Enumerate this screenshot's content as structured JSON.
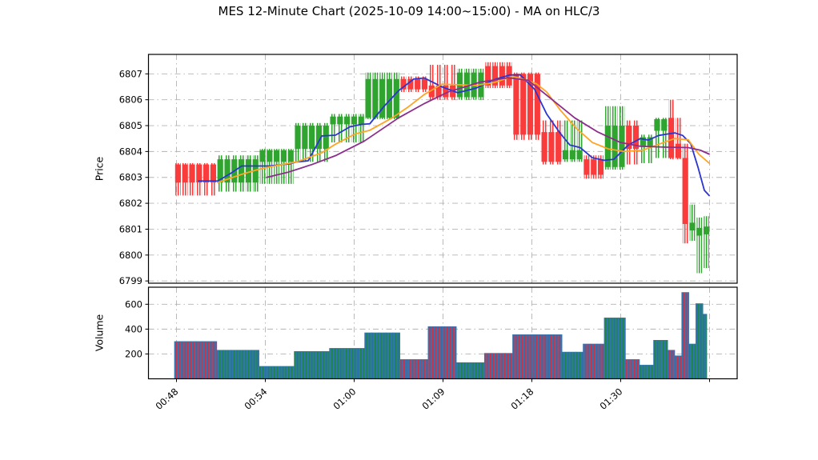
{
  "title": "MES 12-Minute Chart (2025-10-09 14:00~15:00) - MA on HLC/3",
  "price_panel": {
    "ylabel": "Price"
  },
  "volume_panel": {
    "ylabel": "Volume"
  },
  "colors": {
    "background": "#ffffff",
    "candle_up": "#2fa52f",
    "candle_down": "#fa3b3b",
    "volume_base": "#3076b3",
    "volume_up_stripe": "#1e8449",
    "volume_down_stripe": "#cf3045",
    "ma_fast": "#2b35cf",
    "ma_mid": "#ffa424",
    "ma_slow": "#8c2d8c",
    "grid": "#b3b3b3",
    "spine": "#000000"
  },
  "chart_data": {
    "type": "candlestick_with_volume",
    "title": "MES 12-Minute Chart (2025-10-09 14:00~15:00) - MA on HLC/3",
    "x_axis": {
      "tick_labels": [
        "00:48",
        "00:54",
        "01:00",
        "01:09",
        "01:18",
        "01:30",
        ""
      ]
    },
    "price_axis": {
      "label": "Price",
      "ticks": [
        6807,
        6806,
        6805,
        6804,
        6803,
        6802,
        6801,
        6800,
        6799
      ],
      "range": [
        6798.85,
        6807.75
      ]
    },
    "volume_axis": {
      "label": "Volume",
      "ticks": [
        600,
        400,
        200
      ],
      "range": [
        0,
        755
      ]
    },
    "ohlcv_blocks": [
      {
        "bars": 6,
        "dir": "down",
        "open": 6803.5,
        "high": 6803.55,
        "low": 6802.3,
        "close": 6802.8,
        "volume": 300
      },
      {
        "bars": 6,
        "dir": "up",
        "open": 6802.8,
        "high": 6803.85,
        "low": 6802.45,
        "close": 6803.7,
        "volume": 230
      },
      {
        "bars": 5,
        "dir": "up",
        "open": 6803.6,
        "high": 6804.1,
        "low": 6802.75,
        "close": 6804.05,
        "volume": 100
      },
      {
        "bars": 5,
        "dir": "up",
        "open": 6804.1,
        "high": 6805.1,
        "low": 6803.6,
        "close": 6805.0,
        "volume": 220
      },
      {
        "bars": 5,
        "dir": "up",
        "open": 6805.05,
        "high": 6805.45,
        "low": 6804.35,
        "close": 6805.35,
        "volume": 245
      },
      {
        "bars": 5,
        "dir": "up",
        "open": 6805.3,
        "high": 6807.05,
        "low": 6805.25,
        "close": 6806.8,
        "volume": 370
      },
      {
        "bars": 4,
        "dir": "down",
        "open": 6806.8,
        "high": 6806.9,
        "low": 6806.3,
        "close": 6806.4,
        "volume": 155
      },
      {
        "bars": 4,
        "dir": "down",
        "open": 6806.55,
        "high": 6807.35,
        "low": 6806.0,
        "close": 6806.1,
        "volume": 420
      },
      {
        "bars": 4,
        "dir": "up",
        "open": 6806.1,
        "high": 6807.2,
        "low": 6806.0,
        "close": 6807.05,
        "volume": 130
      },
      {
        "bars": 4,
        "dir": "down",
        "open": 6807.3,
        "high": 6807.45,
        "low": 6806.45,
        "close": 6806.55,
        "volume": 205
      },
      {
        "bars": 4,
        "dir": "down",
        "open": 6807.0,
        "high": 6807.05,
        "low": 6804.45,
        "close": 6804.65,
        "volume": 355
      },
      {
        "bars": 3,
        "dir": "down",
        "open": 6804.75,
        "high": 6805.2,
        "low": 6803.5,
        "close": 6803.6,
        "volume": 355
      },
      {
        "bars": 3,
        "dir": "up",
        "open": 6803.7,
        "high": 6805.2,
        "low": 6803.6,
        "close": 6804.05,
        "volume": 215
      },
      {
        "bars": 3,
        "dir": "down",
        "open": 6803.7,
        "high": 6803.85,
        "low": 6802.95,
        "close": 6803.1,
        "volume": 280
      },
      {
        "bars": 3,
        "dir": "up",
        "open": 6803.4,
        "high": 6805.75,
        "low": 6803.3,
        "close": 6805.0,
        "volume": 490
      },
      {
        "bars": 2,
        "dir": "down",
        "open": 6805.0,
        "high": 6805.2,
        "low": 6803.5,
        "close": 6804.1,
        "volume": 155
      },
      {
        "bars": 2,
        "dir": "up",
        "open": 6804.2,
        "high": 6804.65,
        "low": 6803.55,
        "close": 6804.55,
        "volume": 110
      },
      {
        "bars": 2,
        "dir": "up",
        "open": 6804.8,
        "high": 6805.3,
        "low": 6803.75,
        "close": 6805.25,
        "volume": 310
      },
      {
        "bars": 1,
        "dir": "down",
        "open": 6805.3,
        "high": 6806.0,
        "low": 6803.7,
        "close": 6803.75,
        "volume": 230
      },
      {
        "bars": 1,
        "dir": "down",
        "open": 6804.3,
        "high": 6805.3,
        "low": 6803.7,
        "close": 6803.75,
        "volume": 185
      },
      {
        "bars": 1,
        "dir": "down",
        "open": 6803.75,
        "high": 6804.3,
        "low": 6800.45,
        "close": 6801.2,
        "volume": 695
      },
      {
        "bars": 1,
        "dir": "up",
        "open": 6800.95,
        "high": 6801.95,
        "low": 6800.55,
        "close": 6801.25,
        "volume": 280
      },
      {
        "bars": 1,
        "dir": "up",
        "open": 6800.75,
        "high": 6801.45,
        "low": 6799.3,
        "close": 6801.05,
        "volume": 605
      },
      {
        "bars": 1,
        "dir": "up",
        "open": 6800.8,
        "high": 6801.5,
        "low": 6799.5,
        "close": 6801.1,
        "volume": 520,
        "clipped": true
      }
    ],
    "moving_averages": [
      {
        "name": "ma-fast",
        "color_key": "ma_fast",
        "points": [
          [
            248,
            6802.86
          ],
          [
            272,
            6802.86
          ],
          [
            288,
            6803.15
          ],
          [
            302,
            6803.44
          ],
          [
            336,
            6803.44
          ],
          [
            362,
            6803.52
          ],
          [
            371,
            6803.6
          ],
          [
            385,
            6803.64
          ],
          [
            402,
            6804.6
          ],
          [
            419,
            6804.63
          ],
          [
            437,
            6804.95
          ],
          [
            452,
            6805.05
          ],
          [
            462,
            6805.07
          ],
          [
            480,
            6805.75
          ],
          [
            498,
            6806.35
          ],
          [
            517,
            6806.8
          ],
          [
            530,
            6806.84
          ],
          [
            552,
            6806.5
          ],
          [
            572,
            6806.27
          ],
          [
            595,
            6806.45
          ],
          [
            618,
            6806.78
          ],
          [
            637,
            6806.96
          ],
          [
            650,
            6806.96
          ],
          [
            668,
            6806.4
          ],
          [
            683,
            6805.45
          ],
          [
            700,
            6804.7
          ],
          [
            712,
            6804.25
          ],
          [
            725,
            6804.15
          ],
          [
            740,
            6803.76
          ],
          [
            755,
            6803.66
          ],
          [
            767,
            6803.7
          ],
          [
            785,
            6804.25
          ],
          [
            800,
            6804.5
          ],
          [
            810,
            6804.44
          ],
          [
            823,
            6804.62
          ],
          [
            835,
            6804.68
          ],
          [
            843,
            6804.72
          ],
          [
            853,
            6804.62
          ],
          [
            863,
            6804.3
          ],
          [
            872,
            6803.4
          ],
          [
            880,
            6802.5
          ],
          [
            886,
            6802.3
          ]
        ]
      },
      {
        "name": "ma-mid",
        "color_key": "ma_mid",
        "points": [
          [
            272,
            6802.8
          ],
          [
            302,
            6803.12
          ],
          [
            322,
            6803.3
          ],
          [
            336,
            6803.4
          ],
          [
            371,
            6803.6
          ],
          [
            402,
            6803.95
          ],
          [
            419,
            6804.28
          ],
          [
            444,
            6804.68
          ],
          [
            462,
            6804.82
          ],
          [
            490,
            6805.3
          ],
          [
            510,
            6805.72
          ],
          [
            530,
            6806.2
          ],
          [
            552,
            6806.6
          ],
          [
            572,
            6806.58
          ],
          [
            595,
            6806.55
          ],
          [
            618,
            6806.67
          ],
          [
            640,
            6806.9
          ],
          [
            653,
            6806.8
          ],
          [
            670,
            6806.62
          ],
          [
            683,
            6806.3
          ],
          [
            700,
            6805.6
          ],
          [
            720,
            6804.9
          ],
          [
            740,
            6804.35
          ],
          [
            760,
            6804.1
          ],
          [
            780,
            6804.0
          ],
          [
            803,
            6804.05
          ],
          [
            823,
            6804.28
          ],
          [
            843,
            6804.5
          ],
          [
            860,
            6804.45
          ],
          [
            873,
            6803.9
          ],
          [
            886,
            6803.55
          ]
        ]
      },
      {
        "name": "ma-slow",
        "color_key": "ma_slow",
        "points": [
          [
            333,
            6803.0
          ],
          [
            360,
            6803.2
          ],
          [
            390,
            6803.5
          ],
          [
            420,
            6803.85
          ],
          [
            455,
            6804.4
          ],
          [
            498,
            6805.3
          ],
          [
            530,
            6805.85
          ],
          [
            560,
            6806.3
          ],
          [
            600,
            6806.68
          ],
          [
            635,
            6806.85
          ],
          [
            660,
            6806.75
          ],
          [
            690,
            6806.0
          ],
          [
            718,
            6805.3
          ],
          [
            747,
            6804.75
          ],
          [
            775,
            6804.35
          ],
          [
            800,
            6804.2
          ],
          [
            830,
            6804.17
          ],
          [
            860,
            6804.15
          ],
          [
            875,
            6804.05
          ],
          [
            886,
            6803.9
          ]
        ]
      }
    ]
  }
}
